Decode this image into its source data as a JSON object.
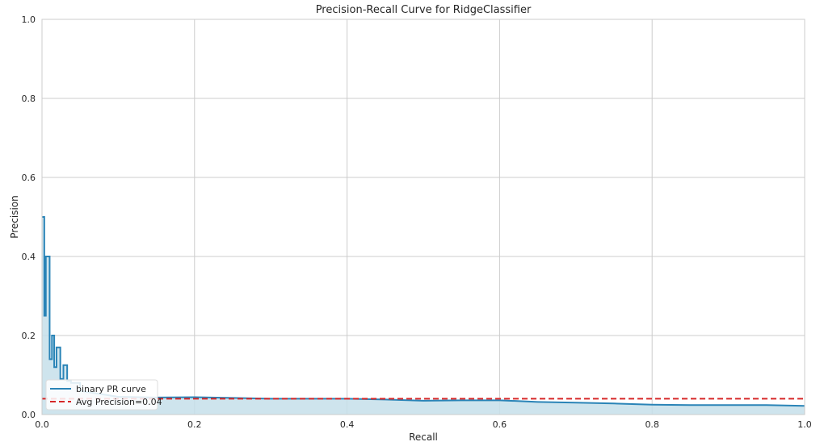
{
  "chart_data": {
    "type": "line",
    "title": "Precision-Recall Curve for RidgeClassifier",
    "xlabel": "Recall",
    "ylabel": "Precision",
    "xlim": [
      0.0,
      1.0
    ],
    "ylim": [
      0.0,
      1.0
    ],
    "xticks": [
      "0.0",
      "0.2",
      "0.4",
      "0.6",
      "0.8",
      "1.0"
    ],
    "yticks": [
      "0.0",
      "0.2",
      "0.4",
      "0.6",
      "0.8",
      "1.0"
    ],
    "grid": true,
    "legend_position": "lower-left",
    "series": [
      {
        "name": "binary PR curve",
        "color": "#2a84b7",
        "fill_color": "#c6dfea",
        "x": [
          0.0,
          0.003,
          0.003,
          0.005,
          0.005,
          0.01,
          0.01,
          0.013,
          0.013,
          0.016,
          0.016,
          0.019,
          0.019,
          0.024,
          0.024,
          0.028,
          0.028,
          0.033,
          0.033,
          0.038,
          0.038,
          0.05,
          0.05,
          0.1,
          0.15,
          0.2,
          0.25,
          0.3,
          0.35,
          0.4,
          0.45,
          0.5,
          0.55,
          0.6,
          0.65,
          0.7,
          0.75,
          0.8,
          0.85,
          0.9,
          0.95,
          1.0
        ],
        "y": [
          0.5,
          0.5,
          0.25,
          0.25,
          0.4,
          0.4,
          0.14,
          0.14,
          0.2,
          0.2,
          0.12,
          0.12,
          0.17,
          0.17,
          0.09,
          0.09,
          0.125,
          0.125,
          0.085,
          0.085,
          0.08,
          0.08,
          0.06,
          0.045,
          0.043,
          0.044,
          0.042,
          0.04,
          0.04,
          0.04,
          0.038,
          0.035,
          0.036,
          0.036,
          0.032,
          0.03,
          0.028,
          0.025,
          0.024,
          0.024,
          0.024,
          0.022
        ]
      },
      {
        "name": "Avg Precision=0.04",
        "color": "#d62728",
        "style": "dashed",
        "value": 0.04
      }
    ]
  }
}
